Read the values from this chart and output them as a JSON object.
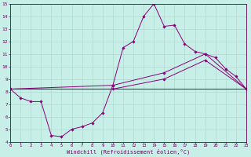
{
  "xlabel": "Windchill (Refroidissement éolien,°C)",
  "xlim": [
    0,
    23
  ],
  "ylim": [
    4,
    15
  ],
  "xticks": [
    0,
    1,
    2,
    3,
    4,
    5,
    6,
    7,
    8,
    9,
    10,
    11,
    12,
    13,
    14,
    15,
    16,
    17,
    18,
    19,
    20,
    21,
    22,
    23
  ],
  "yticks": [
    4,
    5,
    6,
    7,
    8,
    9,
    10,
    11,
    12,
    13,
    14,
    15
  ],
  "background_color": "#c8eee8",
  "grid_color": "#aaddcc",
  "line_color": "#880077",
  "line1_x": [
    0,
    1,
    2,
    3,
    4,
    5,
    6,
    7,
    8,
    9,
    10,
    11,
    12,
    13,
    14,
    15,
    16,
    17,
    18,
    19,
    20,
    21,
    22,
    23
  ],
  "line1_y": [
    8.2,
    7.5,
    7.2,
    7.2,
    4.5,
    4.4,
    5.0,
    5.2,
    5.5,
    6.3,
    8.5,
    11.5,
    12.0,
    14.0,
    15.0,
    13.2,
    13.3,
    11.8,
    11.2,
    11.0,
    10.7,
    9.8,
    9.2,
    8.2
  ],
  "line2_x": [
    0,
    23
  ],
  "line2_y": [
    8.2,
    8.2
  ],
  "line3_x": [
    0,
    10,
    15,
    19,
    23
  ],
  "line3_y": [
    8.2,
    8.5,
    9.5,
    11.0,
    8.2
  ],
  "line4_x": [
    0,
    10,
    15,
    19,
    23
  ],
  "line4_y": [
    8.2,
    8.2,
    9.0,
    10.5,
    8.2
  ]
}
